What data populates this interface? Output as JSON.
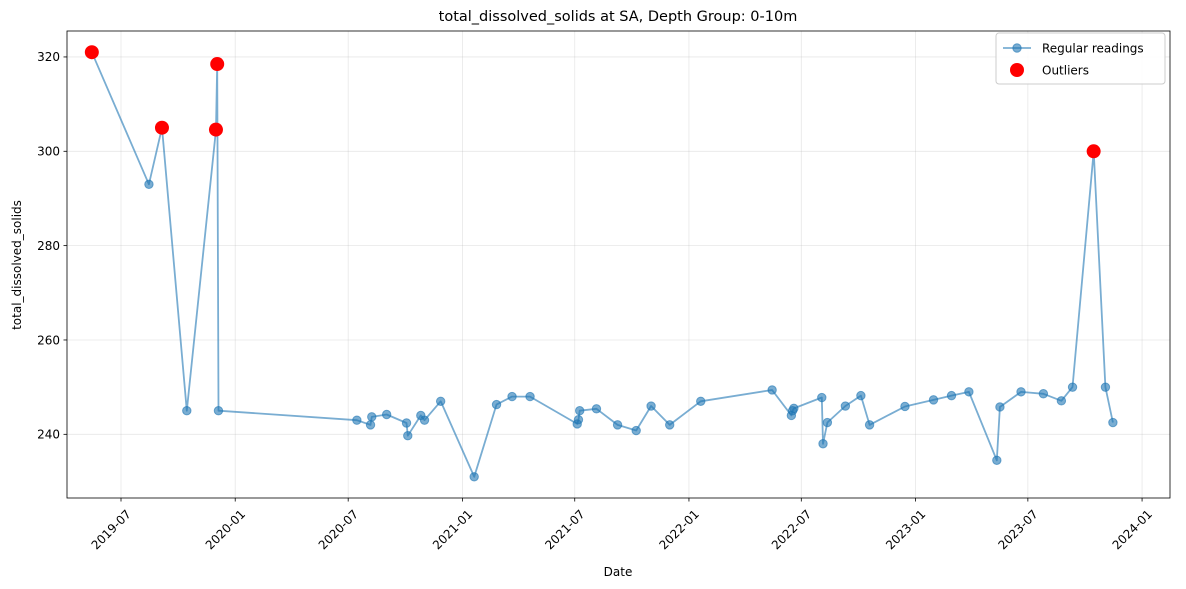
{
  "chart_data": {
    "type": "line",
    "title": "total_dissolved_solids at SA, Depth Group: 0-10m",
    "xlabel": "Date",
    "ylabel": "total_dissolved_solids",
    "x_ticks": [
      "2019-07",
      "2020-01",
      "2020-07",
      "2021-01",
      "2021-07",
      "2022-01",
      "2022-07",
      "2023-01",
      "2023-07",
      "2024-01"
    ],
    "y_ticks": [
      240,
      260,
      280,
      300,
      320
    ],
    "xlim": [
      "2019-04-05",
      "2024-02-15"
    ],
    "ylim": [
      226.5,
      325.5
    ],
    "grid": true,
    "legend_position": "top-right",
    "series": [
      {
        "name": "Regular readings",
        "color": "#1f77b4",
        "x": [
          "2019-05-15",
          "2019-08-15",
          "2019-09-05",
          "2019-10-15",
          "2019-12-01",
          "2019-12-03",
          "2019-12-05",
          "2020-07-15",
          "2020-08-06",
          "2020-08-08",
          "2020-09-01",
          "2020-10-03",
          "2020-10-05",
          "2020-10-26",
          "2020-11-01",
          "2020-11-27",
          "2021-01-20",
          "2021-02-25",
          "2021-03-22",
          "2021-04-20",
          "2021-07-05",
          "2021-07-07",
          "2021-07-09",
          "2021-08-05",
          "2021-09-08",
          "2021-10-08",
          "2021-11-01",
          "2021-12-01",
          "2022-01-20",
          "2022-05-15",
          "2022-06-15",
          "2022-06-17",
          "2022-06-19",
          "2022-08-03",
          "2022-08-05",
          "2022-08-12",
          "2022-09-10",
          "2022-10-05",
          "2022-10-19",
          "2022-12-15",
          "2023-01-30",
          "2023-02-28",
          "2023-03-28",
          "2023-05-12",
          "2023-05-17",
          "2023-06-20",
          "2023-07-26",
          "2023-08-24",
          "2023-09-11",
          "2023-10-15",
          "2023-11-03",
          "2023-11-15"
        ],
        "y": [
          321,
          293,
          305,
          245,
          304.6,
          318.5,
          245,
          243,
          242,
          243.7,
          244.2,
          242.4,
          239.7,
          244,
          243,
          247,
          231,
          246.3,
          248,
          248,
          242.2,
          243.1,
          245,
          245.4,
          242,
          240.8,
          246,
          242,
          247,
          249.4,
          244,
          245,
          245.5,
          247.8,
          238,
          242.5,
          246,
          248.2,
          242,
          245.9,
          247.3,
          248.2,
          249,
          234.5,
          245.8,
          249,
          248.6,
          247.1,
          250,
          300,
          250,
          242.5
        ]
      },
      {
        "name": "Outliers",
        "color": "#ff0000",
        "x": [
          "2019-05-15",
          "2019-09-05",
          "2019-12-01",
          "2019-12-03",
          "2023-10-15"
        ],
        "y": [
          321,
          305,
          304.6,
          318.5,
          300
        ]
      }
    ]
  }
}
